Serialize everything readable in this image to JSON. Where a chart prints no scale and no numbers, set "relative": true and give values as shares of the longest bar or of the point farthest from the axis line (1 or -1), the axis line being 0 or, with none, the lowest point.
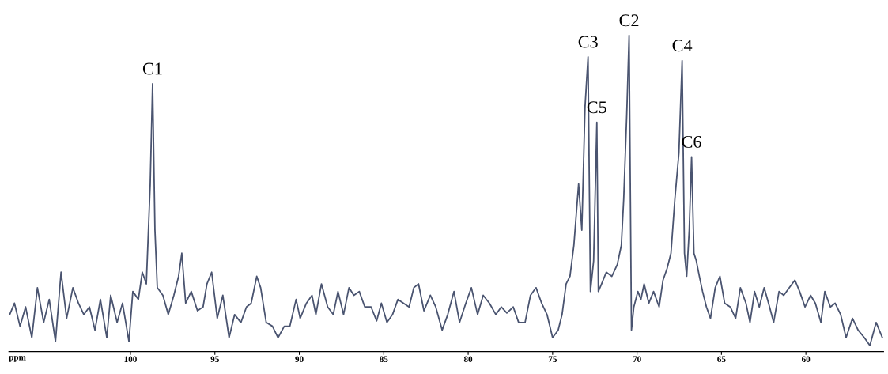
{
  "chart_data": {
    "type": "line",
    "relative": true,
    "xlabel": "ppm",
    "xlim": [
      107.2,
      55.4
    ],
    "xticks": [
      100,
      95,
      90,
      85,
      80,
      75,
      70,
      65,
      60
    ],
    "grid": false,
    "legend": false,
    "marker": "none",
    "line_style": "solid",
    "series": [
      {
        "color": "#4a5470",
        "x": [
          107.15,
          106.87,
          106.54,
          106.21,
          105.84,
          105.51,
          105.14,
          104.81,
          104.44,
          104.11,
          103.78,
          103.41,
          103.08,
          102.76,
          102.43,
          102.1,
          101.78,
          101.4,
          101.17,
          100.79,
          100.47,
          100.09,
          99.86,
          99.53,
          99.3,
          99.06,
          98.83,
          98.69,
          98.55,
          98.41,
          98.08,
          97.76,
          97.43,
          97.15,
          96.96,
          96.73,
          96.4,
          96.03,
          95.7,
          95.47,
          95.19,
          94.86,
          94.53,
          94.16,
          93.83,
          93.46,
          93.13,
          92.85,
          92.52,
          92.29,
          91.96,
          91.59,
          91.26,
          90.89,
          90.56,
          90.19,
          89.95,
          89.58,
          89.25,
          89.02,
          88.69,
          88.32,
          87.99,
          87.71,
          87.38,
          87.06,
          86.77,
          86.45,
          86.12,
          85.75,
          85.42,
          85.14,
          84.81,
          84.48,
          84.16,
          83.83,
          83.5,
          83.22,
          82.94,
          82.62,
          82.24,
          81.92,
          81.54,
          81.21,
          80.84,
          80.51,
          80.14,
          79.81,
          79.44,
          79.11,
          78.74,
          78.36,
          78.04,
          77.71,
          77.33,
          77.01,
          76.63,
          76.31,
          75.98,
          75.65,
          75.33,
          75.0,
          74.67,
          74.44,
          74.2,
          73.97,
          73.74,
          73.46,
          73.27,
          73.08,
          72.9,
          72.76,
          72.57,
          72.38,
          72.29,
          72.1,
          71.82,
          71.49,
          71.17,
          70.93,
          70.79,
          70.61,
          70.47,
          70.33,
          70.19,
          69.95,
          69.77,
          69.58,
          69.3,
          69.02,
          68.69,
          68.46,
          68.22,
          67.99,
          67.76,
          67.52,
          67.33,
          67.19,
          67.06,
          66.91,
          66.77,
          66.63,
          66.49,
          66.31,
          66.12,
          65.89,
          65.65,
          65.37,
          65.09,
          64.81,
          64.48,
          64.16,
          63.88,
          63.55,
          63.31,
          63.04,
          62.76,
          62.47,
          62.15,
          61.91,
          61.59,
          61.31,
          60.98,
          60.65,
          60.37,
          60.05,
          59.72,
          59.44,
          59.11,
          58.88,
          58.55,
          58.27,
          57.94,
          57.62,
          57.24,
          56.91,
          56.54,
          56.21,
          55.84,
          55.47
        ],
        "values": [
          0.117,
          0.153,
          0.08,
          0.141,
          0.044,
          0.202,
          0.092,
          0.165,
          0.032,
          0.251,
          0.105,
          0.202,
          0.153,
          0.117,
          0.141,
          0.068,
          0.165,
          0.044,
          0.178,
          0.092,
          0.153,
          0.032,
          0.19,
          0.165,
          0.251,
          0.214,
          0.53,
          0.847,
          0.384,
          0.202,
          0.178,
          0.117,
          0.178,
          0.238,
          0.311,
          0.153,
          0.19,
          0.129,
          0.141,
          0.214,
          0.251,
          0.105,
          0.178,
          0.044,
          0.117,
          0.092,
          0.141,
          0.153,
          0.238,
          0.202,
          0.092,
          0.08,
          0.044,
          0.08,
          0.08,
          0.165,
          0.105,
          0.153,
          0.178,
          0.117,
          0.214,
          0.141,
          0.117,
          0.19,
          0.117,
          0.202,
          0.178,
          0.19,
          0.141,
          0.141,
          0.097,
          0.153,
          0.092,
          0.117,
          0.165,
          0.153,
          0.141,
          0.202,
          0.214,
          0.129,
          0.178,
          0.141,
          0.068,
          0.117,
          0.19,
          0.092,
          0.153,
          0.202,
          0.117,
          0.178,
          0.153,
          0.117,
          0.141,
          0.122,
          0.141,
          0.092,
          0.092,
          0.178,
          0.202,
          0.153,
          0.117,
          0.044,
          0.068,
          0.117,
          0.214,
          0.238,
          0.336,
          0.53,
          0.384,
          0.774,
          0.932,
          0.19,
          0.287,
          0.725,
          0.19,
          0.214,
          0.251,
          0.238,
          0.275,
          0.336,
          0.482,
          0.749,
          1.0,
          0.068,
          0.141,
          0.19,
          0.165,
          0.214,
          0.153,
          0.19,
          0.141,
          0.226,
          0.263,
          0.311,
          0.482,
          0.628,
          0.92,
          0.311,
          0.238,
          0.384,
          0.616,
          0.311,
          0.287,
          0.238,
          0.19,
          0.141,
          0.105,
          0.202,
          0.238,
          0.153,
          0.141,
          0.105,
          0.202,
          0.153,
          0.092,
          0.19,
          0.141,
          0.202,
          0.141,
          0.092,
          0.19,
          0.178,
          0.202,
          0.226,
          0.19,
          0.141,
          0.178,
          0.153,
          0.092,
          0.19,
          0.141,
          0.153,
          0.117,
          0.044,
          0.105,
          0.068,
          0.044,
          0.019,
          0.092,
          0.044
        ]
      }
    ],
    "annotations": [
      {
        "text": "C1",
        "x": 98.69,
        "y": 0.847
      },
      {
        "text": "C3",
        "x": 72.9,
        "y": 0.932
      },
      {
        "text": "C5",
        "x": 72.38,
        "y": 0.725
      },
      {
        "text": "C2",
        "x": 70.47,
        "y": 1.0
      },
      {
        "text": "C4",
        "x": 67.33,
        "y": 0.92
      },
      {
        "text": "C6",
        "x": 66.77,
        "y": 0.616
      }
    ]
  }
}
